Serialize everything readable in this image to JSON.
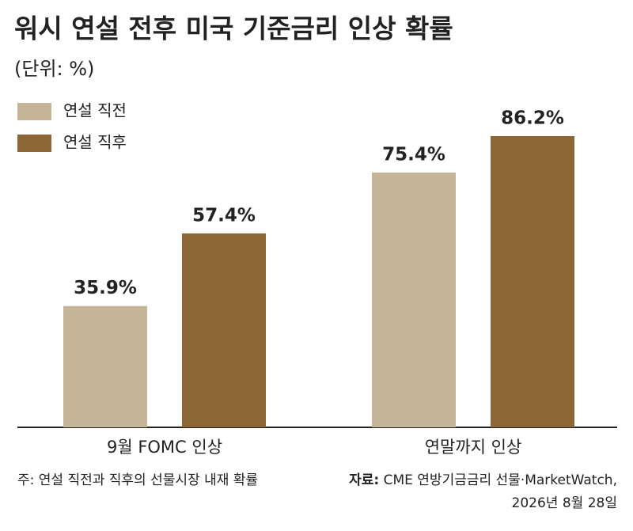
{
  "chart_data": {
    "type": "bar",
    "title": "워시 연설 전후 미국 기준금리 인상 확률",
    "subtitle": "(단위: %)",
    "categories": [
      "9월 FOMC 인상",
      "연말까지 인상"
    ],
    "series": [
      {
        "name": "연설 직전",
        "color": "#c5b598",
        "values": [
          35.9,
          75.4
        ],
        "value_labels": [
          "35.9%",
          "75.4%"
        ]
      },
      {
        "name": "연설 직후",
        "color": "#8c6634",
        "values": [
          57.4,
          86.2
        ],
        "value_labels": [
          "57.4%",
          "86.2%"
        ]
      }
    ],
    "note": "주: 연설 직전과 직후의 선물시장 내재 확률",
    "source_label": "자료:",
    "source": "CME 연방기금금리 선물·MarketWatch,",
    "source_date": "2026년 8월 28일"
  }
}
